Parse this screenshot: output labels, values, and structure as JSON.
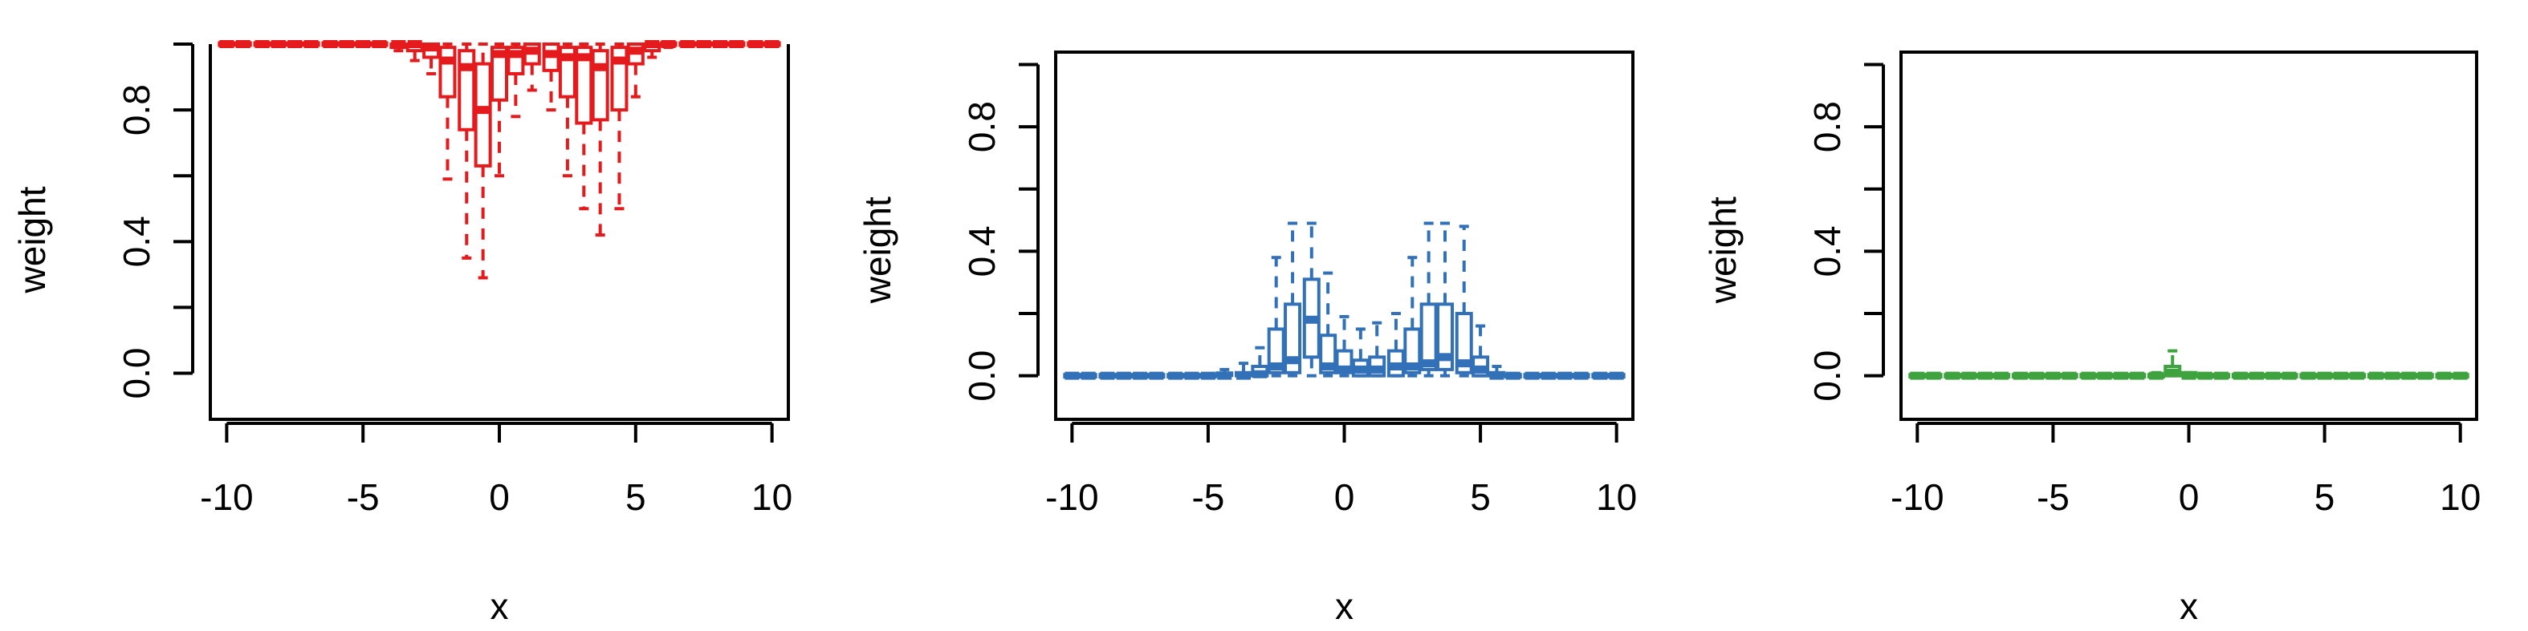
{
  "chart_data": [
    {
      "type": "box",
      "title": "",
      "xlabel": "x",
      "ylabel": "weight",
      "xlim": [
        -10.6,
        10.6
      ],
      "ylim": [
        -0.14,
        1.0
      ],
      "xticks": [
        "-10",
        "-5",
        "0",
        "5",
        "10"
      ],
      "yticks": [
        "0.0",
        "0.4",
        "0.8"
      ],
      "color": "#E41A1C",
      "boxes": [
        {
          "x": -10.0,
          "lo": 1.0,
          "q1": 1.0,
          "med": 1.0,
          "q3": 1.0,
          "hi": 1.0
        },
        {
          "x": -9.4,
          "lo": 1.0,
          "q1": 1.0,
          "med": 1.0,
          "q3": 1.0,
          "hi": 1.0
        },
        {
          "x": -8.7,
          "lo": 1.0,
          "q1": 1.0,
          "med": 1.0,
          "q3": 1.0,
          "hi": 1.0
        },
        {
          "x": -8.1,
          "lo": 1.0,
          "q1": 1.0,
          "med": 1.0,
          "q3": 1.0,
          "hi": 1.0
        },
        {
          "x": -7.5,
          "lo": 1.0,
          "q1": 1.0,
          "med": 1.0,
          "q3": 1.0,
          "hi": 1.0
        },
        {
          "x": -6.9,
          "lo": 1.0,
          "q1": 1.0,
          "med": 1.0,
          "q3": 1.0,
          "hi": 1.0
        },
        {
          "x": -6.2,
          "lo": 1.0,
          "q1": 1.0,
          "med": 1.0,
          "q3": 1.0,
          "hi": 1.0
        },
        {
          "x": -5.6,
          "lo": 1.0,
          "q1": 1.0,
          "med": 1.0,
          "q3": 1.0,
          "hi": 1.0
        },
        {
          "x": -5.0,
          "lo": 1.0,
          "q1": 1.0,
          "med": 1.0,
          "q3": 1.0,
          "hi": 1.0
        },
        {
          "x": -4.4,
          "lo": 1.0,
          "q1": 1.0,
          "med": 1.0,
          "q3": 1.0,
          "hi": 1.0
        },
        {
          "x": -3.7,
          "lo": 0.98,
          "q1": 0.99,
          "med": 1.0,
          "q3": 1.0,
          "hi": 1.0
        },
        {
          "x": -3.1,
          "lo": 0.95,
          "q1": 0.98,
          "med": 1.0,
          "q3": 1.0,
          "hi": 1.0
        },
        {
          "x": -2.5,
          "lo": 0.91,
          "q1": 0.96,
          "med": 0.99,
          "q3": 1.0,
          "hi": 1.0
        },
        {
          "x": -1.9,
          "lo": 0.59,
          "q1": 0.84,
          "med": 0.95,
          "q3": 0.99,
          "hi": 1.0
        },
        {
          "x": -1.2,
          "lo": 0.35,
          "q1": 0.74,
          "med": 0.93,
          "q3": 0.98,
          "hi": 1.0
        },
        {
          "x": -0.6,
          "lo": 0.29,
          "q1": 0.63,
          "med": 0.8,
          "q3": 0.94,
          "hi": 1.0
        },
        {
          "x": 0.0,
          "lo": 0.6,
          "q1": 0.83,
          "med": 0.97,
          "q3": 0.99,
          "hi": 1.0
        },
        {
          "x": 0.6,
          "lo": 0.78,
          "q1": 0.91,
          "med": 0.97,
          "q3": 0.99,
          "hi": 1.0
        },
        {
          "x": 1.2,
          "lo": 0.86,
          "q1": 0.94,
          "med": 0.98,
          "q3": 1.0,
          "hi": 1.0
        },
        {
          "x": 1.9,
          "lo": 0.8,
          "q1": 0.92,
          "med": 0.97,
          "q3": 1.0,
          "hi": 1.0
        },
        {
          "x": 2.5,
          "lo": 0.6,
          "q1": 0.84,
          "med": 0.96,
          "q3": 0.99,
          "hi": 1.0
        },
        {
          "x": 3.1,
          "lo": 0.5,
          "q1": 0.76,
          "med": 0.96,
          "q3": 0.99,
          "hi": 1.0
        },
        {
          "x": 3.7,
          "lo": 0.42,
          "q1": 0.77,
          "med": 0.93,
          "q3": 0.98,
          "hi": 1.0
        },
        {
          "x": 4.4,
          "lo": 0.5,
          "q1": 0.8,
          "med": 0.95,
          "q3": 0.99,
          "hi": 1.0
        },
        {
          "x": 5.0,
          "lo": 0.84,
          "q1": 0.94,
          "med": 0.98,
          "q3": 1.0,
          "hi": 1.0
        },
        {
          "x": 5.6,
          "lo": 0.96,
          "q1": 0.98,
          "med": 1.0,
          "q3": 1.0,
          "hi": 1.0
        },
        {
          "x": 6.2,
          "lo": 0.99,
          "q1": 1.0,
          "med": 1.0,
          "q3": 1.0,
          "hi": 1.0
        },
        {
          "x": 6.9,
          "lo": 1.0,
          "q1": 1.0,
          "med": 1.0,
          "q3": 1.0,
          "hi": 1.0
        },
        {
          "x": 7.5,
          "lo": 1.0,
          "q1": 1.0,
          "med": 1.0,
          "q3": 1.0,
          "hi": 1.0
        },
        {
          "x": 8.1,
          "lo": 1.0,
          "q1": 1.0,
          "med": 1.0,
          "q3": 1.0,
          "hi": 1.0
        },
        {
          "x": 8.7,
          "lo": 1.0,
          "q1": 1.0,
          "med": 1.0,
          "q3": 1.0,
          "hi": 1.0
        },
        {
          "x": 9.4,
          "lo": 1.0,
          "q1": 1.0,
          "med": 1.0,
          "q3": 1.0,
          "hi": 1.0
        },
        {
          "x": 10.0,
          "lo": 1.0,
          "q1": 1.0,
          "med": 1.0,
          "q3": 1.0,
          "hi": 1.0
        }
      ]
    },
    {
      "type": "box",
      "title": "",
      "xlabel": "x",
      "ylabel": "weight",
      "xlim": [
        -10.6,
        10.6
      ],
      "ylim": [
        -0.14,
        1.04
      ],
      "xticks": [
        "-10",
        "-5",
        "0",
        "5",
        "10"
      ],
      "yticks": [
        "0.0",
        "0.4",
        "0.8"
      ],
      "color": "#3271B8",
      "boxes": [
        {
          "x": -10.0,
          "lo": 0.0,
          "q1": 0.0,
          "med": 0.0,
          "q3": 0.0,
          "hi": 0.0
        },
        {
          "x": -9.4,
          "lo": 0.0,
          "q1": 0.0,
          "med": 0.0,
          "q3": 0.0,
          "hi": 0.0
        },
        {
          "x": -8.7,
          "lo": 0.0,
          "q1": 0.0,
          "med": 0.0,
          "q3": 0.0,
          "hi": 0.0
        },
        {
          "x": -8.1,
          "lo": 0.0,
          "q1": 0.0,
          "med": 0.0,
          "q3": 0.0,
          "hi": 0.0
        },
        {
          "x": -7.5,
          "lo": 0.0,
          "q1": 0.0,
          "med": 0.0,
          "q3": 0.0,
          "hi": 0.0
        },
        {
          "x": -6.9,
          "lo": 0.0,
          "q1": 0.0,
          "med": 0.0,
          "q3": 0.0,
          "hi": 0.0
        },
        {
          "x": -6.2,
          "lo": 0.0,
          "q1": 0.0,
          "med": 0.0,
          "q3": 0.0,
          "hi": 0.0
        },
        {
          "x": -5.6,
          "lo": 0.0,
          "q1": 0.0,
          "med": 0.0,
          "q3": 0.0,
          "hi": 0.0
        },
        {
          "x": -5.0,
          "lo": 0.0,
          "q1": 0.0,
          "med": 0.0,
          "q3": 0.0,
          "hi": 0.0
        },
        {
          "x": -4.4,
          "lo": 0.0,
          "q1": 0.0,
          "med": 0.0,
          "q3": 0.005,
          "hi": 0.02
        },
        {
          "x": -3.7,
          "lo": 0.0,
          "q1": 0.0,
          "med": 0.0,
          "q3": 0.01,
          "hi": 0.04
        },
        {
          "x": -3.1,
          "lo": 0.0,
          "q1": 0.0,
          "med": 0.005,
          "q3": 0.03,
          "hi": 0.09
        },
        {
          "x": -2.5,
          "lo": 0.0,
          "q1": 0.01,
          "med": 0.03,
          "q3": 0.15,
          "hi": 0.38
        },
        {
          "x": -1.9,
          "lo": 0.0,
          "q1": 0.01,
          "med": 0.05,
          "q3": 0.23,
          "hi": 0.49
        },
        {
          "x": -1.2,
          "lo": 0.0,
          "q1": 0.06,
          "med": 0.18,
          "q3": 0.31,
          "hi": 0.49
        },
        {
          "x": -0.6,
          "lo": 0.0,
          "q1": 0.01,
          "med": 0.03,
          "q3": 0.13,
          "hi": 0.33
        },
        {
          "x": 0.0,
          "lo": 0.0,
          "q1": 0.01,
          "med": 0.02,
          "q3": 0.08,
          "hi": 0.19
        },
        {
          "x": 0.6,
          "lo": 0.0,
          "q1": 0.0,
          "med": 0.02,
          "q3": 0.05,
          "hi": 0.15
        },
        {
          "x": 1.2,
          "lo": 0.0,
          "q1": 0.0,
          "med": 0.02,
          "q3": 0.06,
          "hi": 0.17
        },
        {
          "x": 1.9,
          "lo": 0.0,
          "q1": 0.0,
          "med": 0.03,
          "q3": 0.08,
          "hi": 0.2
        },
        {
          "x": 2.5,
          "lo": 0.0,
          "q1": 0.01,
          "med": 0.03,
          "q3": 0.15,
          "hi": 0.38
        },
        {
          "x": 3.1,
          "lo": 0.0,
          "q1": 0.02,
          "med": 0.04,
          "q3": 0.23,
          "hi": 0.49
        },
        {
          "x": 3.7,
          "lo": 0.0,
          "q1": 0.02,
          "med": 0.06,
          "q3": 0.23,
          "hi": 0.49
        },
        {
          "x": 4.4,
          "lo": 0.0,
          "q1": 0.01,
          "med": 0.04,
          "q3": 0.2,
          "hi": 0.48
        },
        {
          "x": 5.0,
          "lo": 0.0,
          "q1": 0.0,
          "med": 0.02,
          "q3": 0.06,
          "hi": 0.16
        },
        {
          "x": 5.6,
          "lo": 0.0,
          "q1": 0.0,
          "med": 0.0,
          "q3": 0.01,
          "hi": 0.03
        },
        {
          "x": 6.2,
          "lo": 0.0,
          "q1": 0.0,
          "med": 0.0,
          "q3": 0.0,
          "hi": 0.0
        },
        {
          "x": 6.9,
          "lo": 0.0,
          "q1": 0.0,
          "med": 0.0,
          "q3": 0.0,
          "hi": 0.0
        },
        {
          "x": 7.5,
          "lo": 0.0,
          "q1": 0.0,
          "med": 0.0,
          "q3": 0.0,
          "hi": 0.0
        },
        {
          "x": 8.1,
          "lo": 0.0,
          "q1": 0.0,
          "med": 0.0,
          "q3": 0.0,
          "hi": 0.0
        },
        {
          "x": 8.7,
          "lo": 0.0,
          "q1": 0.0,
          "med": 0.0,
          "q3": 0.0,
          "hi": 0.0
        },
        {
          "x": 9.4,
          "lo": 0.0,
          "q1": 0.0,
          "med": 0.0,
          "q3": 0.0,
          "hi": 0.0
        },
        {
          "x": 10.0,
          "lo": 0.0,
          "q1": 0.0,
          "med": 0.0,
          "q3": 0.0,
          "hi": 0.0
        }
      ]
    },
    {
      "type": "box",
      "title": "",
      "xlabel": "x",
      "ylabel": "weight",
      "xlim": [
        -10.6,
        10.6
      ],
      "ylim": [
        -0.14,
        1.04
      ],
      "xticks": [
        "-10",
        "-5",
        "0",
        "5",
        "10"
      ],
      "yticks": [
        "0.0",
        "0.4",
        "0.8"
      ],
      "color": "#3EA33E",
      "boxes": [
        {
          "x": -10.0,
          "lo": 0.0,
          "q1": 0.0,
          "med": 0.0,
          "q3": 0.0,
          "hi": 0.0
        },
        {
          "x": -9.4,
          "lo": 0.0,
          "q1": 0.0,
          "med": 0.0,
          "q3": 0.0,
          "hi": 0.0
        },
        {
          "x": -8.7,
          "lo": 0.0,
          "q1": 0.0,
          "med": 0.0,
          "q3": 0.0,
          "hi": 0.0
        },
        {
          "x": -8.1,
          "lo": 0.0,
          "q1": 0.0,
          "med": 0.0,
          "q3": 0.0,
          "hi": 0.0
        },
        {
          "x": -7.5,
          "lo": 0.0,
          "q1": 0.0,
          "med": 0.0,
          "q3": 0.0,
          "hi": 0.0
        },
        {
          "x": -6.9,
          "lo": 0.0,
          "q1": 0.0,
          "med": 0.0,
          "q3": 0.0,
          "hi": 0.0
        },
        {
          "x": -6.2,
          "lo": 0.0,
          "q1": 0.0,
          "med": 0.0,
          "q3": 0.0,
          "hi": 0.0
        },
        {
          "x": -5.6,
          "lo": 0.0,
          "q1": 0.0,
          "med": 0.0,
          "q3": 0.0,
          "hi": 0.0
        },
        {
          "x": -5.0,
          "lo": 0.0,
          "q1": 0.0,
          "med": 0.0,
          "q3": 0.0,
          "hi": 0.0
        },
        {
          "x": -4.4,
          "lo": 0.0,
          "q1": 0.0,
          "med": 0.0,
          "q3": 0.0,
          "hi": 0.0
        },
        {
          "x": -3.7,
          "lo": 0.0,
          "q1": 0.0,
          "med": 0.0,
          "q3": 0.0,
          "hi": 0.0
        },
        {
          "x": -3.1,
          "lo": 0.0,
          "q1": 0.0,
          "med": 0.0,
          "q3": 0.0,
          "hi": 0.0
        },
        {
          "x": -2.5,
          "lo": 0.0,
          "q1": 0.0,
          "med": 0.0,
          "q3": 0.0,
          "hi": 0.0
        },
        {
          "x": -1.9,
          "lo": 0.0,
          "q1": 0.0,
          "med": 0.0,
          "q3": 0.0,
          "hi": 0.0
        },
        {
          "x": -1.2,
          "lo": 0.0,
          "q1": 0.0,
          "med": 0.0,
          "q3": 0.0,
          "hi": 0.01
        },
        {
          "x": -0.6,
          "lo": 0.0,
          "q1": 0.0,
          "med": 0.01,
          "q3": 0.03,
          "hi": 0.08
        },
        {
          "x": 0.0,
          "lo": 0.0,
          "q1": 0.0,
          "med": 0.0,
          "q3": 0.01,
          "hi": 0.01
        },
        {
          "x": 0.6,
          "lo": 0.0,
          "q1": 0.0,
          "med": 0.0,
          "q3": 0.0,
          "hi": 0.0
        },
        {
          "x": 1.2,
          "lo": 0.0,
          "q1": 0.0,
          "med": 0.0,
          "q3": 0.0,
          "hi": 0.0
        },
        {
          "x": 1.9,
          "lo": 0.0,
          "q1": 0.0,
          "med": 0.0,
          "q3": 0.0,
          "hi": 0.0
        },
        {
          "x": 2.5,
          "lo": 0.0,
          "q1": 0.0,
          "med": 0.0,
          "q3": 0.0,
          "hi": 0.0
        },
        {
          "x": 3.1,
          "lo": 0.0,
          "q1": 0.0,
          "med": 0.0,
          "q3": 0.0,
          "hi": 0.0
        },
        {
          "x": 3.7,
          "lo": 0.0,
          "q1": 0.0,
          "med": 0.0,
          "q3": 0.0,
          "hi": 0.0
        },
        {
          "x": 4.4,
          "lo": 0.0,
          "q1": 0.0,
          "med": 0.0,
          "q3": 0.0,
          "hi": 0.0
        },
        {
          "x": 5.0,
          "lo": 0.0,
          "q1": 0.0,
          "med": 0.0,
          "q3": 0.0,
          "hi": 0.0
        },
        {
          "x": 5.6,
          "lo": 0.0,
          "q1": 0.0,
          "med": 0.0,
          "q3": 0.0,
          "hi": 0.0
        },
        {
          "x": 6.2,
          "lo": 0.0,
          "q1": 0.0,
          "med": 0.0,
          "q3": 0.0,
          "hi": 0.0
        },
        {
          "x": 6.9,
          "lo": 0.0,
          "q1": 0.0,
          "med": 0.0,
          "q3": 0.0,
          "hi": 0.0
        },
        {
          "x": 7.5,
          "lo": 0.0,
          "q1": 0.0,
          "med": 0.0,
          "q3": 0.0,
          "hi": 0.0
        },
        {
          "x": 8.1,
          "lo": 0.0,
          "q1": 0.0,
          "med": 0.0,
          "q3": 0.0,
          "hi": 0.0
        },
        {
          "x": 8.7,
          "lo": 0.0,
          "q1": 0.0,
          "med": 0.0,
          "q3": 0.0,
          "hi": 0.0
        },
        {
          "x": 9.4,
          "lo": 0.0,
          "q1": 0.0,
          "med": 0.0,
          "q3": 0.0,
          "hi": 0.0
        },
        {
          "x": 10.0,
          "lo": 0.0,
          "q1": 0.0,
          "med": 0.0,
          "q3": 0.0,
          "hi": 0.0
        }
      ]
    }
  ]
}
